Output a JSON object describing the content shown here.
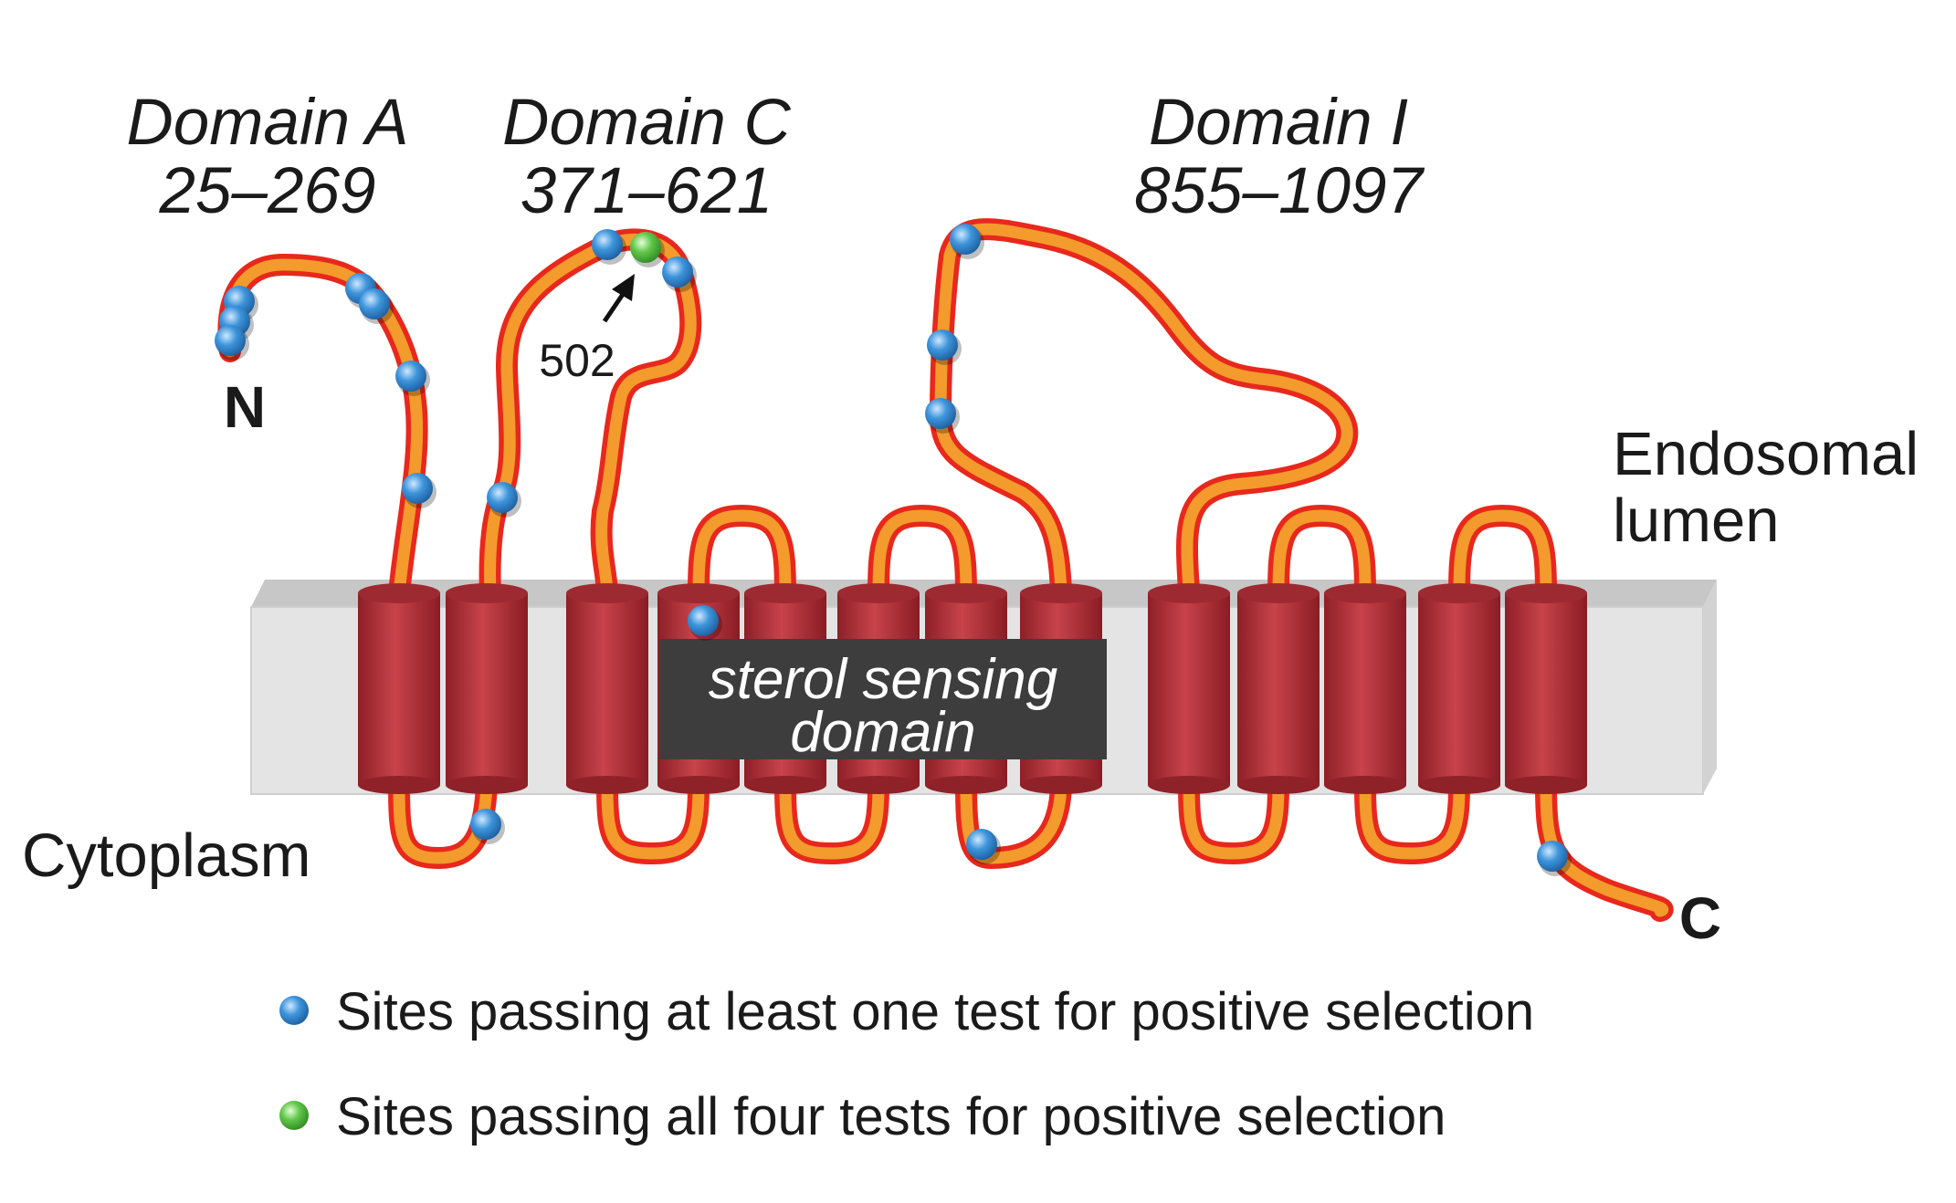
{
  "domains": [
    {
      "name": "Domain A",
      "range": "25–269"
    },
    {
      "name": "Domain C",
      "range": "371–621"
    },
    {
      "name": "Domain I",
      "range": "855–1097"
    }
  ],
  "regions": {
    "lumen_line1": "Endosomal",
    "lumen_line2": "lumen",
    "cytoplasm": "Cytoplasm"
  },
  "termini": {
    "n": "N",
    "c": "C"
  },
  "sterol_domain": {
    "line1": "sterol sensing",
    "line2": "domain"
  },
  "site_annotation": "502",
  "legend": {
    "blue": "Sites passing at least one test for positive selection",
    "green": "Sites passing all four tests for positive selection"
  },
  "colors": {
    "helix": "#b5333a",
    "chain_outer": "#e8281c",
    "chain_inner": "#f39b2c",
    "site_blue": "#3b8fd4",
    "site_green": "#5cbf45",
    "membrane": "#e3e3e3",
    "sterol_box": "#3d3d3d"
  }
}
